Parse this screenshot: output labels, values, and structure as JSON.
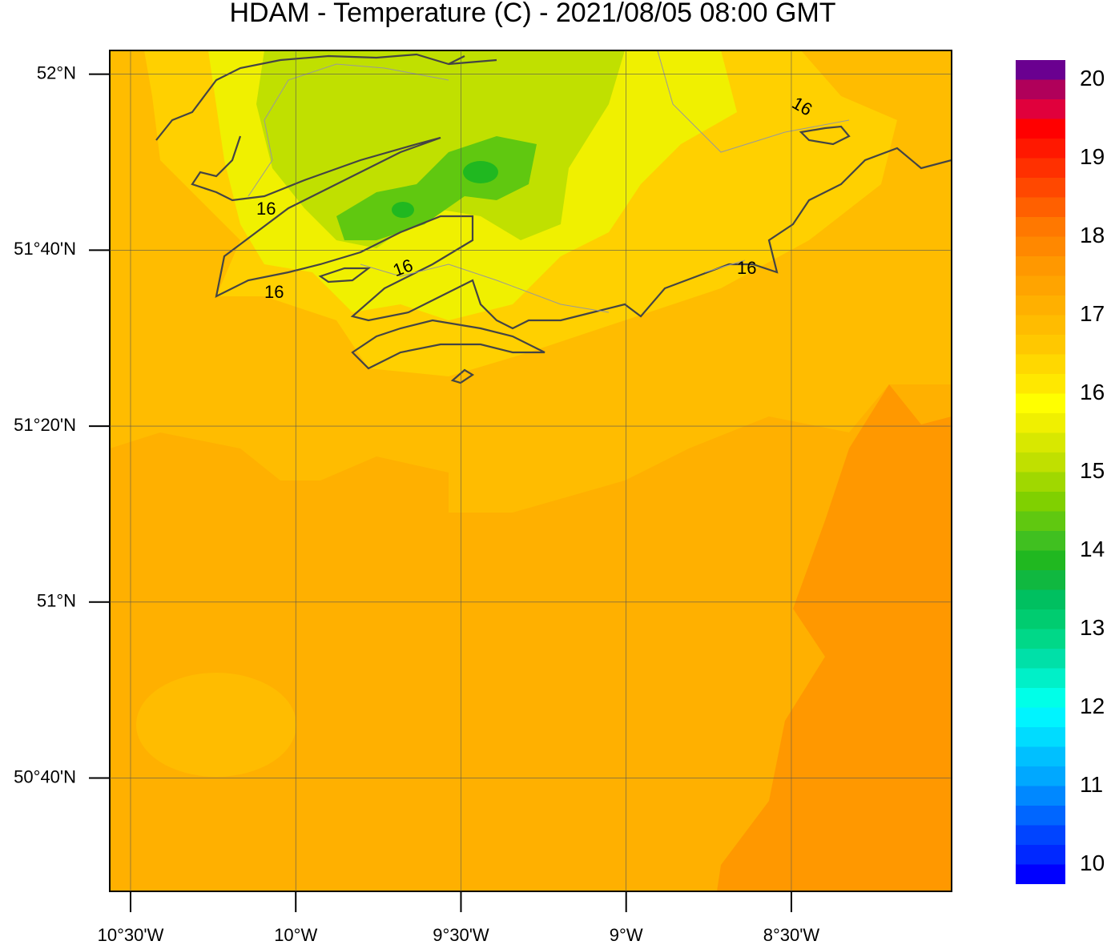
{
  "map": {
    "title": "HDAM - Temperature (C)  -  2021/08/05  08:00 GMT",
    "lat_range": [
      50.452,
      52.045
    ],
    "lon_range": [
      -10.563,
      -8.015
    ],
    "lat_ticks": [
      {
        "value": 52,
        "label": "52°N"
      },
      {
        "value": 51.6667,
        "label": "51°40'N"
      },
      {
        "value": 51.3333,
        "label": "51°20'N"
      },
      {
        "value": 51,
        "label": "51°N"
      },
      {
        "value": 50.6667,
        "label": "50°40'N"
      }
    ],
    "lon_ticks": [
      {
        "value": -10.5,
        "label": "10°30'W"
      },
      {
        "value": -10,
        "label": "10°W"
      },
      {
        "value": -9.5,
        "label": "9°30'W"
      },
      {
        "value": -9,
        "label": "9°W"
      },
      {
        "value": -8.5,
        "label": "8°30'W"
      }
    ],
    "grid": true,
    "contour_label": "16",
    "colorbar": {
      "range": [
        10,
        20
      ],
      "ticks": [
        10,
        11,
        12,
        13,
        14,
        15,
        16,
        17,
        18,
        19,
        20
      ],
      "colors": [
        "#0000ff",
        "#0028ff",
        "#0044ff",
        "#0066ff",
        "#0088ff",
        "#00a8ff",
        "#00c0ff",
        "#00dcff",
        "#00f4ff",
        "#00ffe8",
        "#00f0c8",
        "#00e0a8",
        "#00d888",
        "#00cc70",
        "#00c060",
        "#10b840",
        "#20b820",
        "#40c020",
        "#60c810",
        "#80d000",
        "#a0d800",
        "#c0e000",
        "#d8e800",
        "#f0f000",
        "#ffff00",
        "#ffe800",
        "#ffd800",
        "#ffc800",
        "#ffbc00",
        "#ffb000",
        "#ffa400",
        "#ff9800",
        "#ff8800",
        "#ff7800",
        "#ff6000",
        "#ff4800",
        "#ff3000",
        "#ff1800",
        "#ff0000",
        "#e0003c",
        "#b0005a",
        "#6a0090"
      ]
    }
  }
}
